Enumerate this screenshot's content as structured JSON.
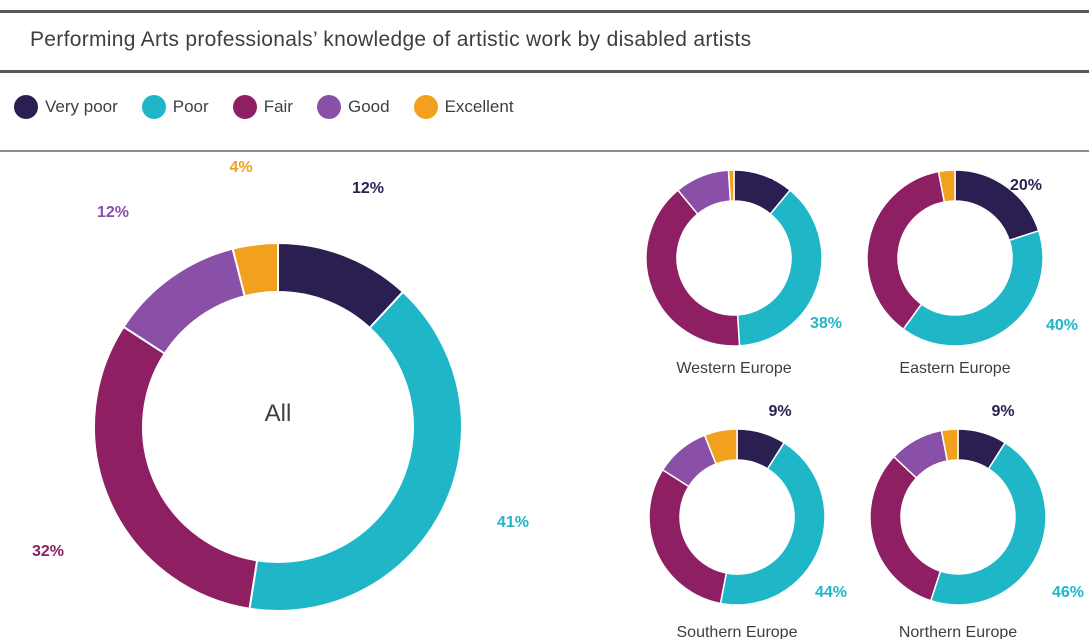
{
  "header": {
    "title": "Performing Arts professionals’ knowledge of artistic work by disabled artists"
  },
  "colors": {
    "very_poor": "#2b1f52",
    "poor": "#1fb6c8",
    "fair": "#8e1f63",
    "good": "#8a4fa6",
    "excellent": "#f2a11f"
  },
  "legend": [
    {
      "label": "Very poor",
      "color": "#2b1f52"
    },
    {
      "label": "Poor",
      "color": "#1fb6c8"
    },
    {
      "label": "Fair",
      "color": "#8e1f63"
    },
    {
      "label": "Good",
      "color": "#8a4fa6"
    },
    {
      "label": "Excellent",
      "color": "#f2a11f"
    }
  ],
  "chart_data": [
    {
      "type": "pie",
      "title": "All",
      "categories": [
        "Very poor",
        "Poor",
        "Fair",
        "Good",
        "Excellent"
      ],
      "values": [
        12,
        41,
        32,
        12,
        4
      ],
      "data_labels": [
        "12%",
        "41%",
        "32%",
        "12%",
        "4%"
      ]
    },
    {
      "type": "pie",
      "title": "Western Europe",
      "categories": [
        "Very poor",
        "Poor",
        "Fair",
        "Good",
        "Excellent"
      ],
      "values": [
        11,
        38,
        40,
        10,
        1
      ],
      "data_labels": [
        "11%",
        "38%",
        "",
        "",
        ""
      ]
    },
    {
      "type": "pie",
      "title": "Eastern Europe",
      "categories": [
        "Very poor",
        "Poor",
        "Fair",
        "Good",
        "Excellent"
      ],
      "values": [
        20,
        40,
        37,
        0,
        3
      ],
      "data_labels": [
        "20%",
        "40%",
        "",
        "",
        ""
      ]
    },
    {
      "type": "pie",
      "title": "Southern Europe",
      "categories": [
        "Very poor",
        "Poor",
        "Fair",
        "Good",
        "Excellent"
      ],
      "values": [
        9,
        44,
        31,
        10,
        6
      ],
      "data_labels": [
        "9%",
        "44%",
        "",
        "",
        ""
      ]
    },
    {
      "type": "pie",
      "title": "Northern Europe",
      "categories": [
        "Very poor",
        "Poor",
        "Fair",
        "Good",
        "Excellent"
      ],
      "values": [
        9,
        46,
        32,
        10,
        3
      ],
      "data_labels": [
        "9%",
        "46%",
        "",
        "",
        ""
      ]
    }
  ]
}
